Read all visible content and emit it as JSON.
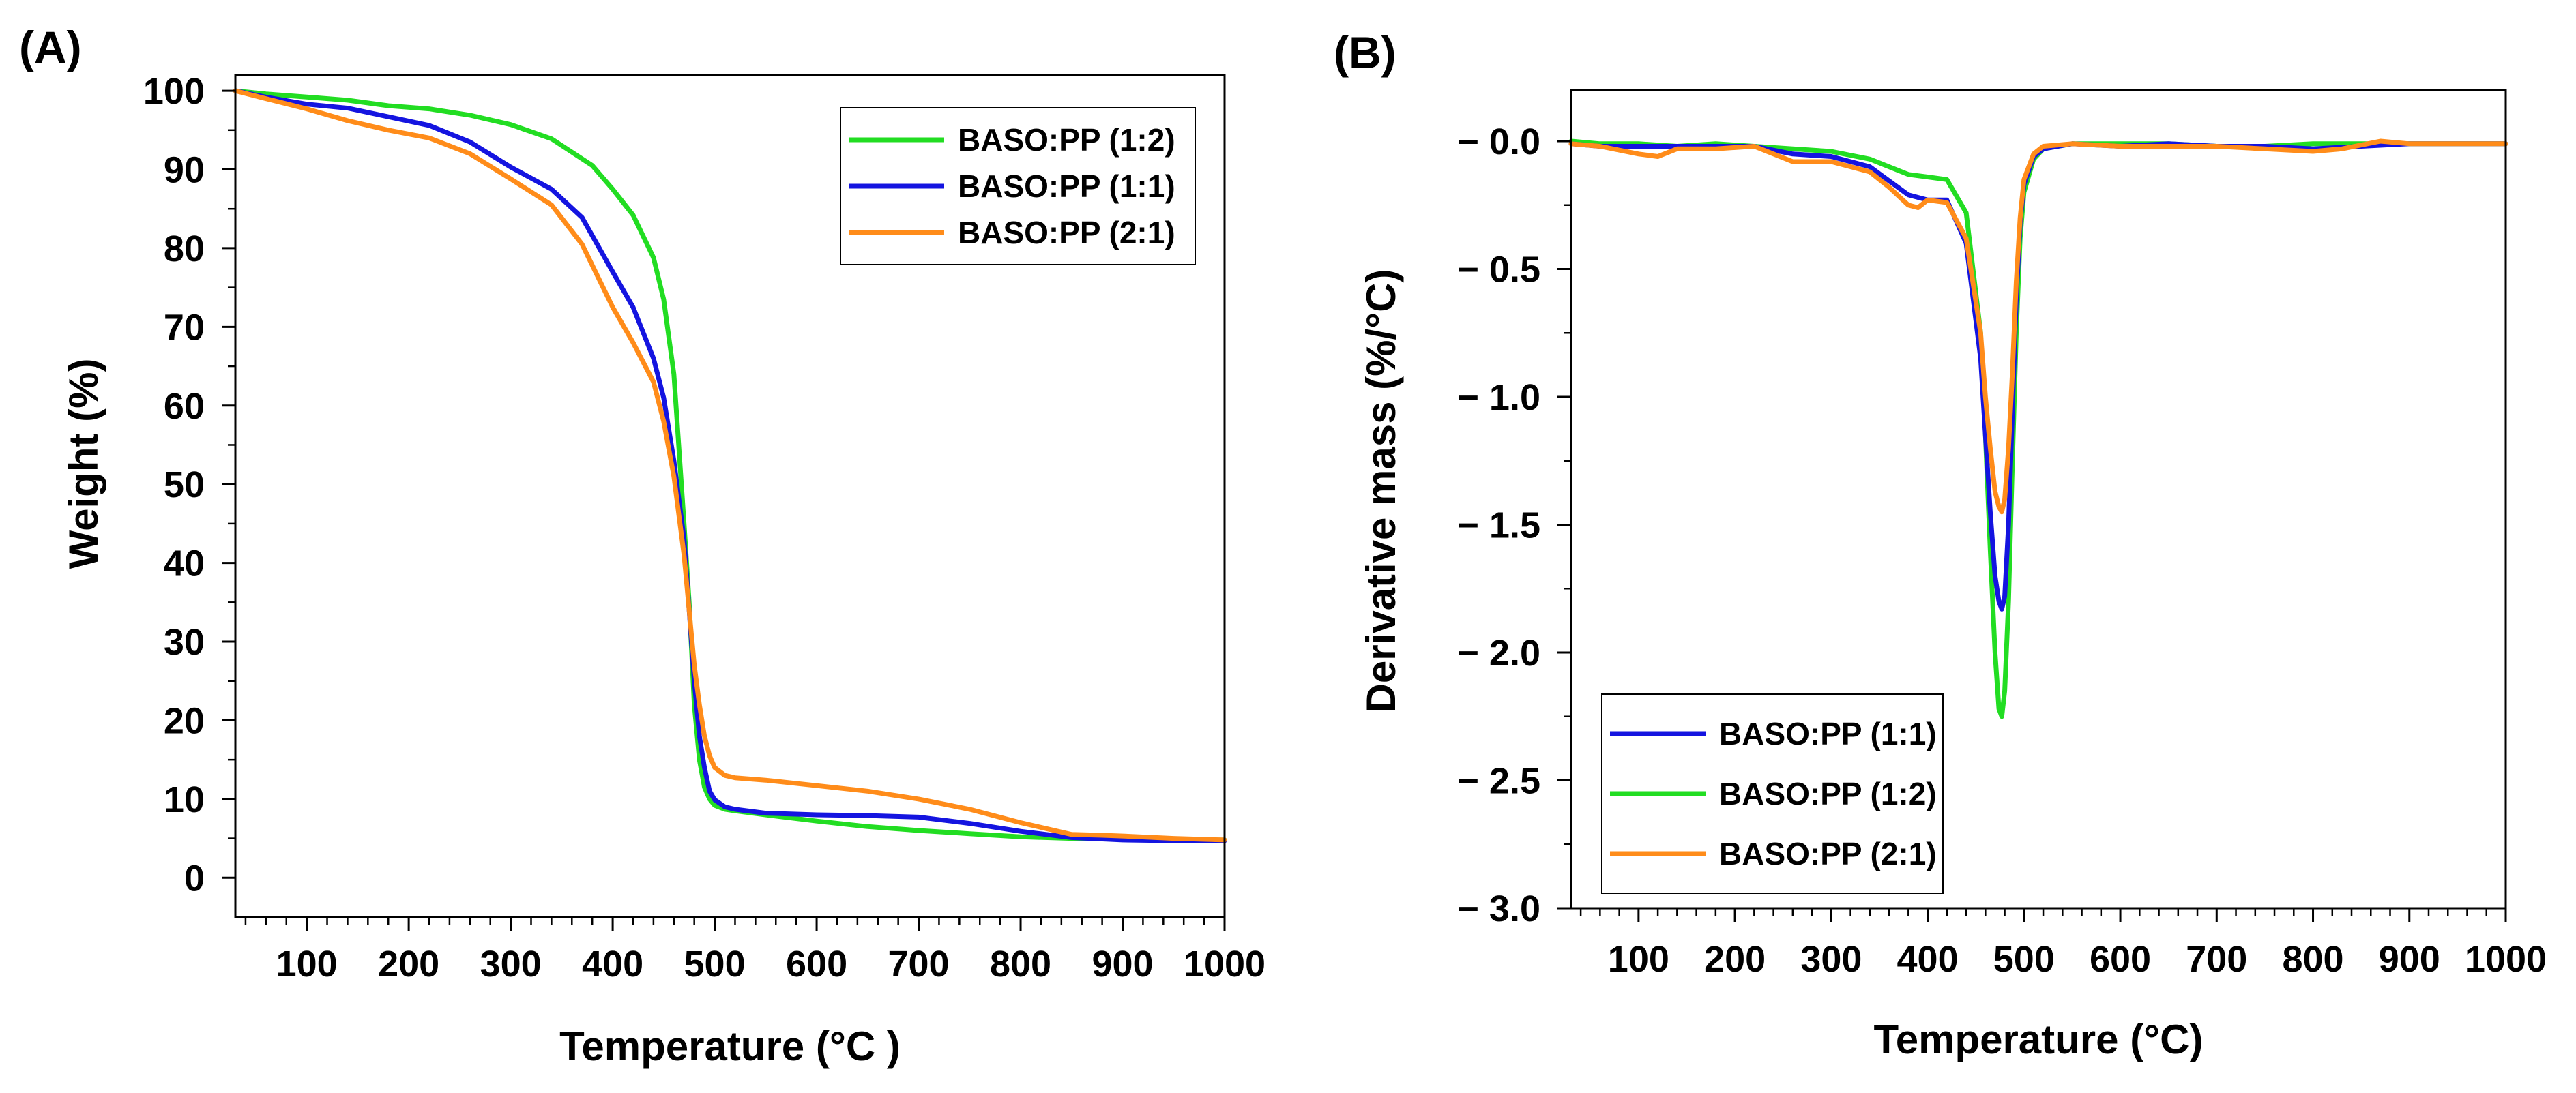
{
  "figure": {
    "panels": [
      {
        "panel_label": "(A)",
        "xlabel": "Temperature (°C )",
        "ylabel": "Weight (%)"
      },
      {
        "panel_label": "(B)",
        "xlabel": "Temperature (°C)",
        "ylabel": "Derivative mass (%/°C)"
      }
    ]
  },
  "chart_data": [
    {
      "type": "line",
      "title": "",
      "xlabel": "Temperature (°C )",
      "ylabel": "Weight (%)",
      "xlim": [
        30,
        1000
      ],
      "ylim": [
        -5,
        102
      ],
      "xticks": [
        100,
        200,
        300,
        400,
        500,
        600,
        700,
        800,
        900,
        1000
      ],
      "yticks": [
        0,
        10,
        20,
        30,
        40,
        50,
        60,
        70,
        80,
        90,
        100
      ],
      "grid": false,
      "legend_position": "top-right",
      "legend_order": [
        0,
        1,
        2
      ],
      "series": [
        {
          "name": "BASO:PP (1:2)",
          "color": "#22dd22",
          "x": [
            30,
            60,
            100,
            140,
            180,
            220,
            260,
            300,
            340,
            380,
            400,
            420,
            440,
            450,
            460,
            470,
            475,
            480,
            485,
            490,
            495,
            500,
            510,
            520,
            550,
            600,
            650,
            700,
            750,
            800,
            850,
            900,
            950,
            1000
          ],
          "y": [
            100,
            99.6,
            99.2,
            98.8,
            98.1,
            97.7,
            96.9,
            95.7,
            93.9,
            90.5,
            87.5,
            84.2,
            78.8,
            73.5,
            64,
            45,
            35,
            22,
            15,
            11.5,
            10,
            9.2,
            8.7,
            8.5,
            8,
            7.2,
            6.5,
            6,
            5.6,
            5.2,
            5,
            4.9,
            4.8,
            4.8
          ]
        },
        {
          "name": "BASO:PP (1:1)",
          "color": "#1414e0",
          "x": [
            30,
            60,
            100,
            140,
            180,
            220,
            260,
            300,
            340,
            370,
            400,
            420,
            440,
            450,
            460,
            470,
            475,
            480,
            485,
            490,
            495,
            500,
            510,
            520,
            550,
            600,
            650,
            700,
            750,
            800,
            850,
            900,
            950,
            1000
          ],
          "y": [
            100,
            99.2,
            98.3,
            97.8,
            96.7,
            95.6,
            93.5,
            90.3,
            87.5,
            83.9,
            77,
            72.5,
            66,
            61,
            53,
            43,
            34,
            25,
            18,
            14,
            11,
            9.9,
            9,
            8.7,
            8.2,
            8,
            7.9,
            7.7,
            6.9,
            5.9,
            5.1,
            4.8,
            4.7,
            4.7
          ]
        },
        {
          "name": "BASO:PP (2:1)",
          "color": "#ff8c1a",
          "x": [
            30,
            60,
            100,
            140,
            180,
            220,
            260,
            300,
            340,
            370,
            400,
            420,
            440,
            450,
            460,
            470,
            475,
            480,
            485,
            490,
            495,
            500,
            510,
            520,
            550,
            600,
            650,
            700,
            750,
            800,
            850,
            880,
            900,
            950,
            1000
          ],
          "y": [
            100,
            99,
            97.7,
            96.2,
            95,
            94,
            92,
            88.8,
            85.5,
            80.5,
            72.5,
            68,
            63,
            58,
            51,
            41,
            34,
            27,
            22,
            18,
            15.5,
            14,
            13,
            12.7,
            12.4,
            11.7,
            11,
            10,
            8.7,
            7,
            5.5,
            5.4,
            5.3,
            5,
            4.8
          ]
        }
      ]
    },
    {
      "type": "line",
      "title": "",
      "xlabel": "Temperature (°C)",
      "ylabel": "Derivative mass (%/°C)",
      "xlim": [
        30,
        1000
      ],
      "ylim": [
        -3.0,
        0.2
      ],
      "xticks": [
        100,
        200,
        300,
        400,
        500,
        600,
        700,
        800,
        900,
        1000
      ],
      "yticks": [
        0.0,
        -0.5,
        -1.0,
        -1.5,
        -2.0,
        -2.5,
        -3.0
      ],
      "ytick_labels": [
        "− 0.0",
        "− 0.5",
        "− 1.0",
        "− 1.5",
        "− 2.0",
        "− 2.5",
        "− 3.0"
      ],
      "grid": false,
      "legend_position": "bottom-left",
      "legend_order": [
        1,
        0,
        2
      ],
      "series": [
        {
          "name": "BASO:PP (1:2)",
          "color": "#22dd22",
          "x": [
            30,
            60,
            100,
            140,
            180,
            220,
            260,
            300,
            340,
            380,
            400,
            420,
            440,
            455,
            460,
            465,
            470,
            474,
            477,
            480,
            484,
            488,
            492,
            496,
            500,
            510,
            520,
            550,
            600,
            650,
            700,
            750,
            800,
            850,
            900,
            950,
            1000
          ],
          "y": [
            0,
            -0.01,
            -0.01,
            -0.02,
            -0.01,
            -0.02,
            -0.03,
            -0.04,
            -0.07,
            -0.13,
            -0.14,
            -0.15,
            -0.28,
            -0.75,
            -1.15,
            -1.6,
            -2.0,
            -2.22,
            -2.25,
            -2.15,
            -1.8,
            -1.25,
            -0.75,
            -0.38,
            -0.2,
            -0.07,
            -0.03,
            -0.01,
            -0.01,
            -0.01,
            -0.02,
            -0.02,
            -0.01,
            -0.01,
            -0.01,
            -0.01,
            -0.01
          ]
        },
        {
          "name": "BASO:PP (1:1)",
          "color": "#1414e0",
          "x": [
            30,
            60,
            100,
            140,
            180,
            220,
            260,
            300,
            340,
            380,
            400,
            420,
            440,
            455,
            460,
            465,
            470,
            474,
            477,
            480,
            484,
            488,
            492,
            496,
            500,
            510,
            520,
            550,
            600,
            650,
            700,
            750,
            800,
            850,
            900,
            950,
            1000
          ],
          "y": [
            -0.01,
            -0.02,
            -0.02,
            -0.02,
            -0.02,
            -0.02,
            -0.05,
            -0.06,
            -0.1,
            -0.21,
            -0.23,
            -0.23,
            -0.4,
            -0.85,
            -1.15,
            -1.45,
            -1.7,
            -1.8,
            -1.83,
            -1.78,
            -1.5,
            -1.05,
            -0.62,
            -0.32,
            -0.17,
            -0.06,
            -0.03,
            -0.01,
            -0.02,
            -0.01,
            -0.02,
            -0.02,
            -0.03,
            -0.02,
            -0.01,
            -0.01,
            -0.01
          ]
        },
        {
          "name": "BASO:PP (2:1)",
          "color": "#ff8c1a",
          "x": [
            30,
            60,
            100,
            120,
            140,
            180,
            220,
            260,
            300,
            340,
            360,
            380,
            390,
            400,
            420,
            440,
            455,
            460,
            465,
            470,
            474,
            477,
            480,
            484,
            488,
            492,
            496,
            500,
            510,
            520,
            550,
            600,
            650,
            700,
            750,
            800,
            830,
            870,
            900,
            950,
            1000
          ],
          "y": [
            -0.01,
            -0.02,
            -0.05,
            -0.06,
            -0.03,
            -0.03,
            -0.02,
            -0.08,
            -0.08,
            -0.12,
            -0.18,
            -0.25,
            -0.26,
            -0.23,
            -0.24,
            -0.38,
            -0.75,
            -1.0,
            -1.2,
            -1.37,
            -1.43,
            -1.45,
            -1.4,
            -1.2,
            -0.9,
            -0.55,
            -0.3,
            -0.15,
            -0.05,
            -0.02,
            -0.01,
            -0.02,
            -0.02,
            -0.02,
            -0.03,
            -0.04,
            -0.03,
            0.0,
            -0.01,
            -0.01,
            -0.01
          ]
        }
      ]
    }
  ]
}
